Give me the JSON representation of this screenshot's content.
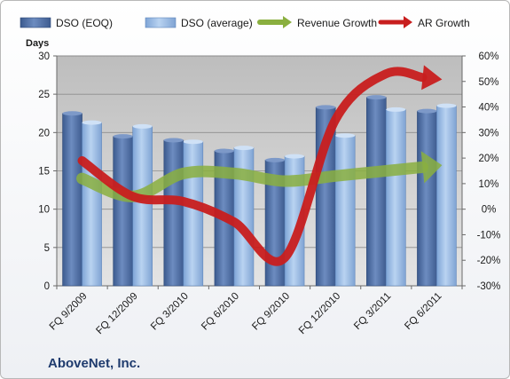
{
  "company": "AboveNet, Inc.",
  "chart_data": {
    "type": "bar",
    "categories": [
      "FQ 9/2009",
      "FQ 12/2009",
      "FQ 3/2010",
      "FQ 6/2010",
      "FQ 9/2010",
      "FQ 12/2010",
      "FQ 3/2011",
      "FQ 6/2011"
    ],
    "ylabel": "Days",
    "ylim": [
      0,
      30
    ],
    "yticks": [
      0,
      5,
      10,
      15,
      20,
      25,
      30
    ],
    "y2lim": [
      -30,
      60
    ],
    "y2ticks": [
      "-30%",
      "-20%",
      "-10%",
      "0%",
      "10%",
      "20%",
      "30%",
      "40%",
      "50%",
      "60%"
    ],
    "grid": true,
    "legend_position": "top",
    "series": [
      {
        "name": "DSO (EOQ)",
        "type": "bar",
        "axis": "left",
        "color": "#4f6fa6",
        "values": [
          22.5,
          19.5,
          19.0,
          17.6,
          16.4,
          23.3,
          24.6,
          22.8
        ]
      },
      {
        "name": "DSO (average)",
        "type": "bar",
        "axis": "left",
        "color": "#8fb3df",
        "values": [
          21.3,
          20.8,
          18.8,
          18.0,
          16.9,
          19.6,
          23.0,
          23.5
        ]
      },
      {
        "name": "Revenue Growth",
        "type": "line",
        "axis": "right",
        "color": "#8aaf3f",
        "values": [
          12,
          5,
          14,
          14,
          11,
          13,
          15,
          17
        ]
      },
      {
        "name": "AR Growth",
        "type": "line",
        "axis": "right",
        "color": "#c81e1e",
        "values": [
          19,
          5,
          3,
          -5,
          -19,
          35,
          53,
          51
        ]
      }
    ]
  }
}
